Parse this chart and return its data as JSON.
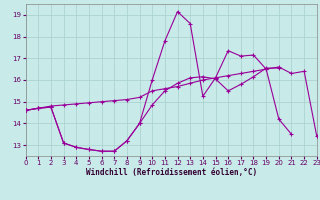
{
  "xlabel": "Windchill (Refroidissement éolien,°C)",
  "xlim": [
    0,
    23
  ],
  "ylim": [
    12.5,
    19.5
  ],
  "xticks": [
    0,
    1,
    2,
    3,
    4,
    5,
    6,
    7,
    8,
    9,
    10,
    11,
    12,
    13,
    14,
    15,
    16,
    17,
    18,
    19,
    20,
    21,
    22,
    23
  ],
  "yticks": [
    13,
    14,
    15,
    16,
    17,
    18,
    19
  ],
  "bg_color": "#c8eae8",
  "grid_color": "#a8d0cc",
  "line_color": "#990099",
  "line1_y": [
    14.6,
    14.7,
    14.8,
    14.85,
    14.9,
    14.95,
    15.0,
    15.05,
    15.1,
    15.2,
    15.5,
    15.6,
    15.7,
    15.85,
    16.0,
    16.1,
    16.2,
    16.3,
    16.4,
    16.5,
    16.6,
    16.3,
    16.4,
    13.4
  ],
  "line2_y": [
    14.6,
    14.7,
    14.75,
    13.1,
    12.9,
    12.8,
    12.72,
    12.72,
    13.2,
    14.0,
    16.0,
    17.8,
    19.15,
    18.6,
    15.25,
    16.1,
    17.35,
    17.1,
    17.15,
    16.5,
    14.2,
    13.5,
    null,
    null
  ],
  "line3_y": [
    14.6,
    14.7,
    14.75,
    13.1,
    12.9,
    12.8,
    12.72,
    12.72,
    13.2,
    14.0,
    14.85,
    15.5,
    15.85,
    16.1,
    16.15,
    16.05,
    15.5,
    15.8,
    16.15,
    16.55,
    16.55,
    null,
    null,
    null
  ]
}
